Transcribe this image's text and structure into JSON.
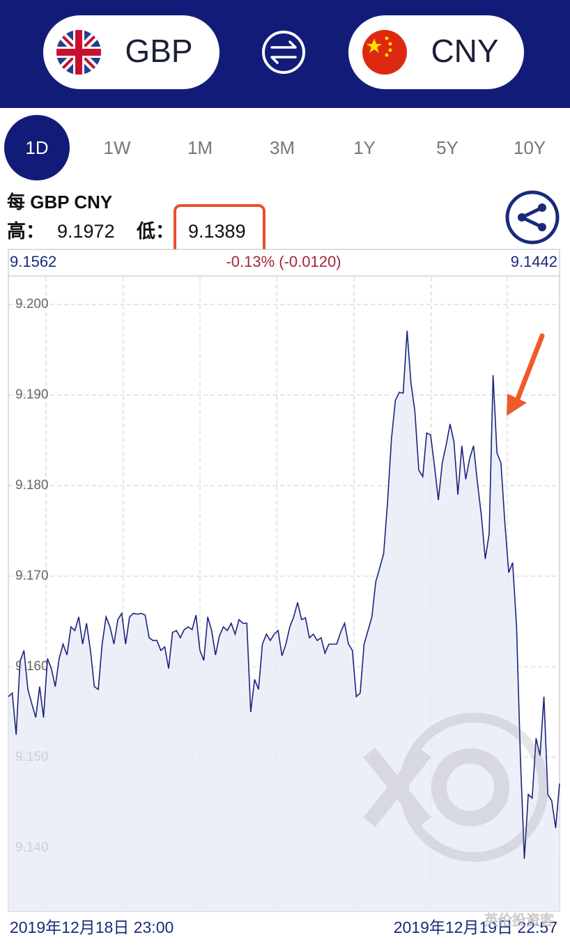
{
  "header": {
    "from": "GBP",
    "to": "CNY"
  },
  "tabs": [
    "1D",
    "1W",
    "1M",
    "3M",
    "1Y",
    "5Y",
    "10Y"
  ],
  "active_tab": 0,
  "pair_label": "每 GBP CNY",
  "high": {
    "label": "高：",
    "value": "9.1972"
  },
  "low": {
    "label": "低：",
    "value": "9.1389"
  },
  "watermark": "英伦投资客",
  "chart_data": {
    "type": "line",
    "start_value": "9.1562",
    "change": "-0.13% (-0.0120)",
    "end_value": "9.1442",
    "x_start_label": "2019年12月18日 23:00",
    "x_end_label": "2019年12月19日 22:57",
    "color": "#1a237e",
    "ylim": [
      9.133,
      9.203
    ],
    "yticks": [
      {
        "value": 9.2,
        "label": "9.200"
      },
      {
        "value": 9.19,
        "label": "9.190"
      },
      {
        "value": 9.18,
        "label": "9.180"
      },
      {
        "value": 9.17,
        "label": "9.170"
      },
      {
        "value": 9.16,
        "label": "9.160"
      },
      {
        "value": 9.15,
        "label": "9.150"
      },
      {
        "value": 9.14,
        "label": "9.140"
      }
    ],
    "grid": true,
    "values": [
      9.1567,
      9.1571,
      9.1525,
      9.1606,
      9.1618,
      9.1575,
      9.1559,
      9.1544,
      9.1578,
      9.1544,
      9.1609,
      9.1598,
      9.1578,
      9.1609,
      9.1625,
      9.1613,
      9.1644,
      9.164,
      9.1655,
      9.1625,
      9.1648,
      9.1618,
      9.1578,
      9.1575,
      9.1625,
      9.1655,
      9.1644,
      9.1625,
      9.1652,
      9.1659,
      9.1625,
      9.1655,
      9.1659,
      9.1658,
      9.1659,
      9.1657,
      9.1632,
      9.1629,
      9.1629,
      9.1618,
      9.1622,
      9.1598,
      9.1638,
      9.164,
      9.1632,
      9.1641,
      9.1644,
      9.1641,
      9.1657,
      9.1618,
      9.1607,
      9.1655,
      9.164,
      9.1613,
      9.1634,
      9.1644,
      9.164,
      9.1648,
      9.1636,
      9.1652,
      9.1648,
      9.1648,
      9.155,
      9.1586,
      9.1575,
      9.1625,
      9.1636,
      9.1629,
      9.1636,
      9.164,
      9.1612,
      9.1625,
      9.1644,
      9.1655,
      9.1671,
      9.1652,
      9.1654,
      9.1632,
      9.1636,
      9.1629,
      9.1632,
      9.1615,
      9.1625,
      9.1625,
      9.1625,
      9.1638,
      9.1648,
      9.1625,
      9.1618,
      9.1567,
      9.1571,
      9.1625,
      9.164,
      9.1655,
      9.1694,
      9.1709,
      9.1725,
      9.1782,
      9.1852,
      9.1894,
      9.1903,
      9.1902,
      9.1971,
      9.1913,
      9.1882,
      9.1817,
      9.181,
      9.1858,
      9.1856,
      9.1822,
      9.1784,
      9.1825,
      9.1845,
      9.1868,
      9.1848,
      9.179,
      9.1844,
      9.1807,
      9.183,
      9.1844,
      9.1803,
      9.1767,
      9.1719,
      9.1747,
      9.1922,
      9.1836,
      9.1825,
      9.1759,
      9.1704,
      9.1715,
      9.1644,
      9.1498,
      9.1388,
      9.1459,
      9.1455,
      9.1521,
      9.1502,
      9.1567,
      9.1459,
      9.1452,
      9.1422,
      9.1471
    ]
  }
}
